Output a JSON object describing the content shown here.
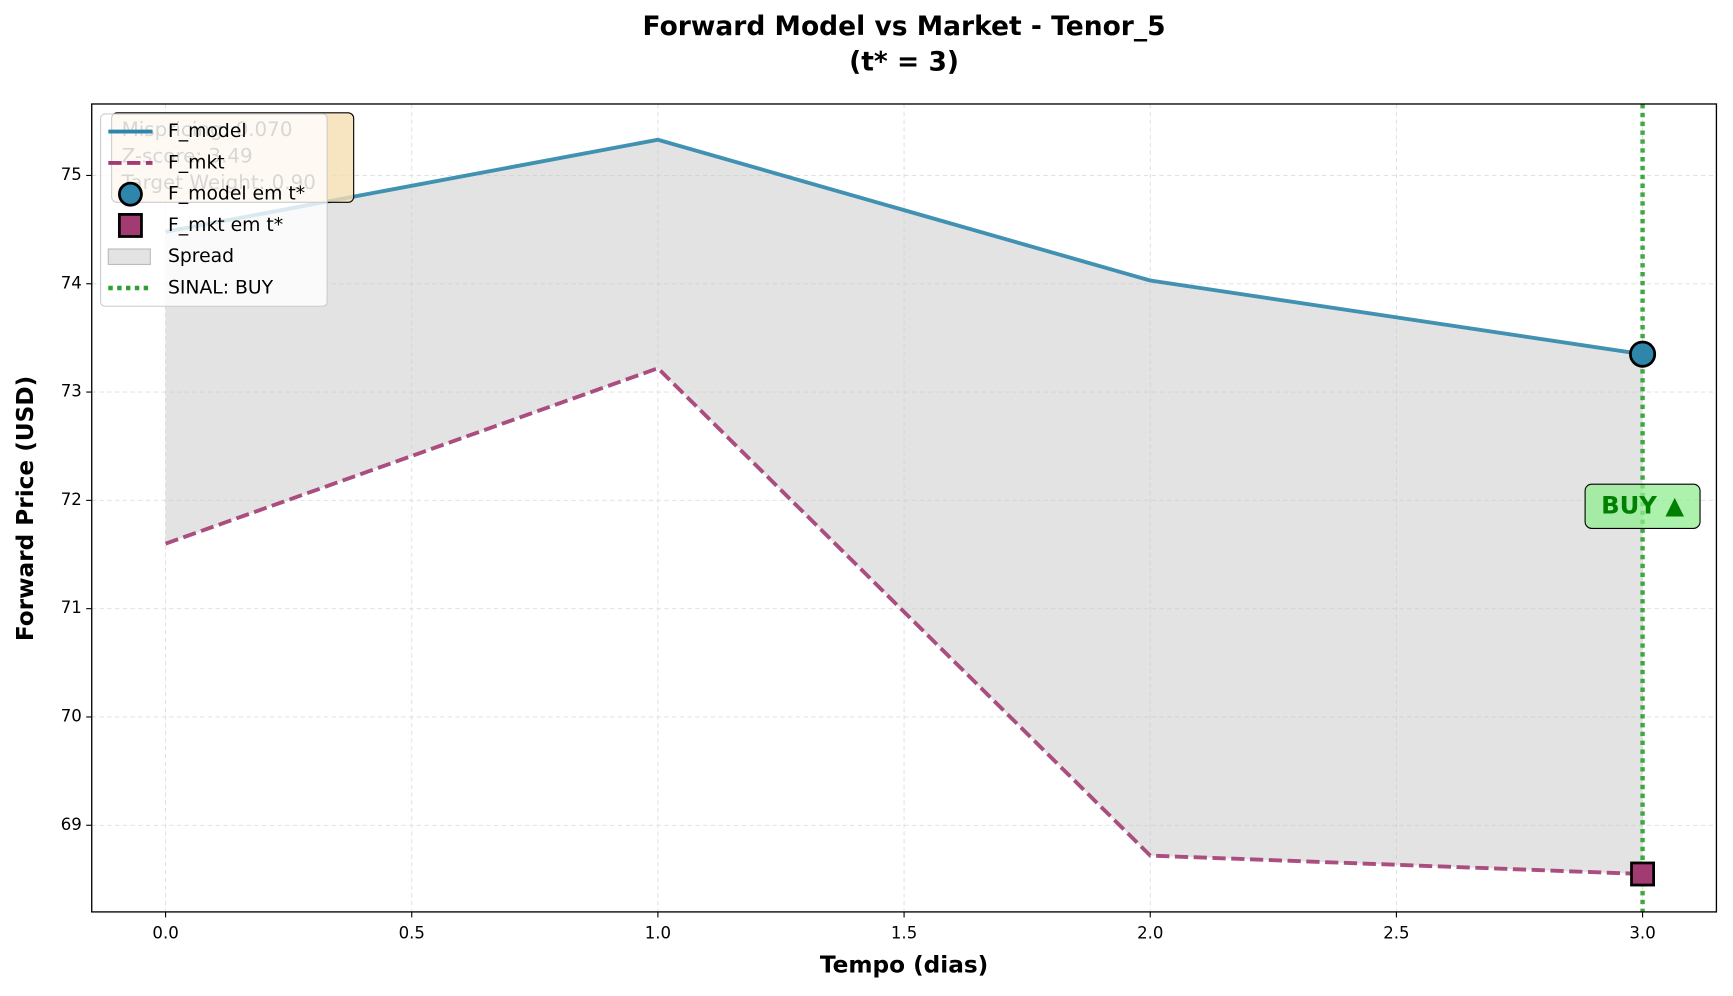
{
  "chart_data": {
    "type": "line",
    "title": "Forward Model vs Market - Tenor_5",
    "subtitle": "(t* = 3)",
    "xlabel": "Tempo (dias)",
    "ylabel": "Forward Price (USD)",
    "x": [
      0,
      1,
      2,
      3
    ],
    "series": [
      {
        "name": "F_model",
        "color": "#2e86ab",
        "style": "solid",
        "values": [
          74.48,
          75.33,
          74.03,
          73.35
        ]
      },
      {
        "name": "F_mkt",
        "color": "#a23b72",
        "style": "dashed",
        "values": [
          71.6,
          73.22,
          68.72,
          68.55
        ]
      }
    ],
    "markers": [
      {
        "name": "F_model em t*",
        "color": "#2e86ab",
        "shape": "circle",
        "x": 3,
        "value": 73.35
      },
      {
        "name": "F_mkt em t*",
        "color": "#a23b72",
        "shape": "square",
        "x": 3,
        "value": 68.55
      }
    ],
    "spread": {
      "name": "Spread",
      "color": "#c8c8c8"
    },
    "signal": {
      "name": "SINAL: BUY",
      "color": "#2ca02c",
      "x": 3,
      "label": "BUY ▲"
    },
    "info": [
      "Mispricing: 0.070",
      "Z-score: 3.49",
      "Target Weight: 0.90"
    ],
    "xlim": [
      -0.15,
      3.15
    ],
    "ylim": [
      68.2,
      75.66
    ],
    "xticks": [
      0.0,
      0.5,
      1.0,
      1.5,
      2.0,
      2.5,
      3.0
    ],
    "xtick_labels": [
      "0.0",
      "0.5",
      "1.0",
      "1.5",
      "2.0",
      "2.5",
      "3.0"
    ],
    "yticks": [
      69,
      70,
      71,
      72,
      73,
      74,
      75
    ],
    "grid": true,
    "legend": "upper left"
  }
}
